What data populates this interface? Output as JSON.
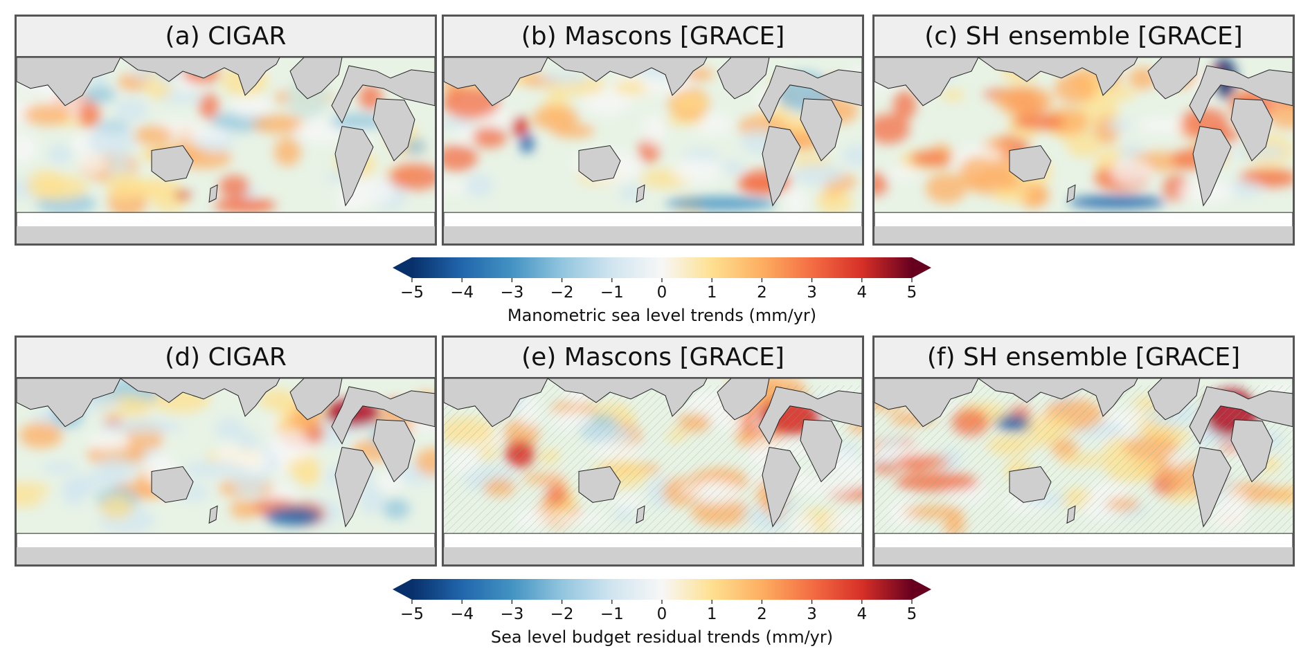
{
  "colors": {
    "land": "#cfcfcf",
    "ocean": "#ffffff",
    "header": "#efefef",
    "frame": "#555555",
    "colormap": [
      "#08306b",
      "#2166ac",
      "#4393c3",
      "#92c5de",
      "#d1e5f0",
      "#f7f7f7",
      "#fee090",
      "#fdae61",
      "#f46d43",
      "#d73027",
      "#67001f"
    ]
  },
  "panels": [
    {
      "id": "a",
      "title": "(a) CIGAR",
      "pattern": "pa",
      "hatch": false
    },
    {
      "id": "b",
      "title": "(b) Mascons [GRACE]",
      "pattern": "pb",
      "hatch": false
    },
    {
      "id": "c",
      "title": "(c) SH ensemble [GRACE]",
      "pattern": "pc",
      "hatch": false
    },
    {
      "id": "d",
      "title": "(d) CIGAR",
      "pattern": "pd",
      "hatch": false
    },
    {
      "id": "e",
      "title": "(e) Mascons [GRACE]",
      "pattern": "pe",
      "hatch": true
    },
    {
      "id": "f",
      "title": "(f) SH ensemble [GRACE]",
      "pattern": "pf",
      "hatch": true
    }
  ],
  "colorbars": [
    {
      "id": "top",
      "label": "Manometric sea level trends (mm/yr)",
      "ticks": [
        "−5",
        "−4",
        "−3",
        "−2",
        "−1",
        "0",
        "1",
        "2",
        "3",
        "4",
        "5"
      ],
      "min": -5,
      "max": 5
    },
    {
      "id": "bottom",
      "label": "Sea level budget residual trends (mm/yr)",
      "ticks": [
        "−5",
        "−4",
        "−3",
        "−2",
        "−1",
        "0",
        "1",
        "2",
        "3",
        "4",
        "5"
      ],
      "min": -5,
      "max": 5
    }
  ]
}
